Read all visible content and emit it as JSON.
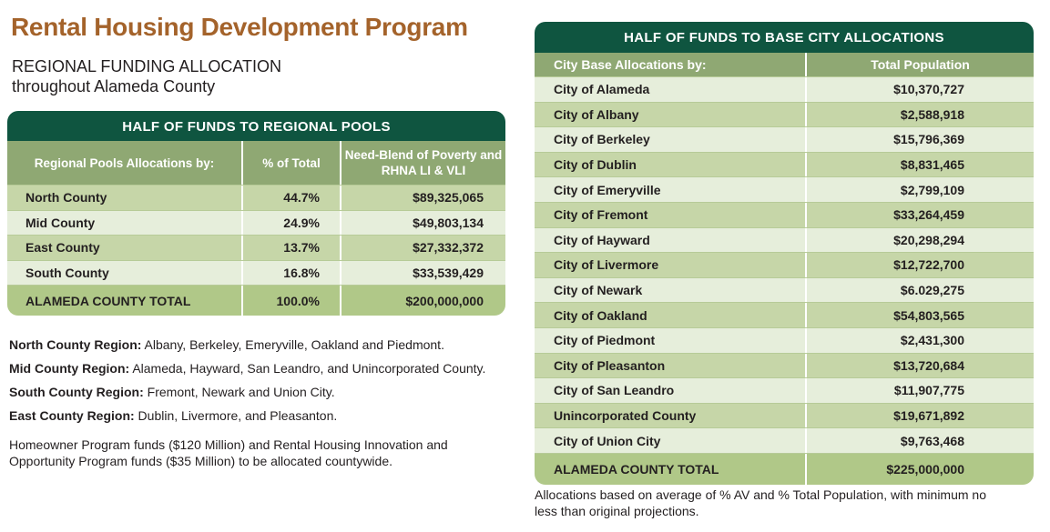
{
  "title": "Rental Housing Development Program",
  "subtitle_line1": "REGIONAL FUNDING ALLOCATION",
  "subtitle_line2": "throughout Alameda County",
  "regional": {
    "caption": "HALF OF FUNDS TO REGIONAL POOLS",
    "headers": [
      "Regional Pools Allocations by:",
      "% of Total",
      "Need-Blend of Poverty and RHNA LI & VLI"
    ],
    "rows": [
      {
        "name": "North County",
        "pct": "44.7%",
        "amount": "$89,325,065"
      },
      {
        "name": "Mid County",
        "pct": "24.9%",
        "amount": "$49,803,134"
      },
      {
        "name": "East County",
        "pct": "13.7%",
        "amount": "$27,332,372"
      },
      {
        "name": "South County",
        "pct": "16.8%",
        "amount": "$33,539,429"
      }
    ],
    "total": {
      "name": "ALAMEDA COUNTY TOTAL",
      "pct": "100.0%",
      "amount": "$200,000,000"
    }
  },
  "notes": [
    {
      "label": "North County Region:",
      "text": " Albany, Berkeley, Emeryville, Oakland and Piedmont."
    },
    {
      "label": "Mid County Region:",
      "text": "  Alameda, Hayward, San Leandro, and Unincorporated County."
    },
    {
      "label": "South County Region:",
      "text": "  Fremont, Newark and Union City."
    },
    {
      "label": "East County Region:",
      "text": "  Dublin, Livermore, and Pleasanton."
    }
  ],
  "homeowner_note": "Homeowner Program funds ($120 Million) and Rental Housing Innovation and Opportunity Program funds ($35 Million) to be allocated countywide.",
  "city": {
    "caption": "HALF OF FUNDS TO BASE CITY ALLOCATIONS",
    "headers": [
      "City Base Allocations by:",
      "Total Population"
    ],
    "rows": [
      {
        "name": "City of Alameda",
        "amount": "$10,370,727"
      },
      {
        "name": "City of Albany",
        "amount": "$2,588,918"
      },
      {
        "name": "City of Berkeley",
        "amount": "$15,796,369"
      },
      {
        "name": "City of Dublin",
        "amount": "$8,831,465"
      },
      {
        "name": "City of Emeryville",
        "amount": "$2,799,109"
      },
      {
        "name": "City of Fremont",
        "amount": "$33,264,459"
      },
      {
        "name": "City of Hayward",
        "amount": "$20,298,294"
      },
      {
        "name": "City of Livermore",
        "amount": "$12,722,700"
      },
      {
        "name": "City of Newark",
        "amount": "$6.029,275"
      },
      {
        "name": "City of Oakland",
        "amount": "$54,803,565"
      },
      {
        "name": "City of Piedmont",
        "amount": "$2,431,300"
      },
      {
        "name": "City of Pleasanton",
        "amount": "$13,720,684"
      },
      {
        "name": "City of San Leandro",
        "amount": "$11,907,775"
      },
      {
        "name": "Unincorporated County",
        "amount": "$19,671,892"
      },
      {
        "name": "City of Union City",
        "amount": "$9,763,468"
      }
    ],
    "total": {
      "name": "ALAMEDA COUNTY TOTAL",
      "amount": "$225,000,000"
    }
  },
  "footnote": "Allocations based on average of % AV and % Total Population, with minimum no less than original projections.",
  "colors": {
    "title": "#a4632b",
    "caption_bg": "#0f5540",
    "header_bg": "#8fa873",
    "row_medium": "#c6d6a8",
    "row_light": "#e6eedb",
    "total_bg": "#b0c888"
  }
}
